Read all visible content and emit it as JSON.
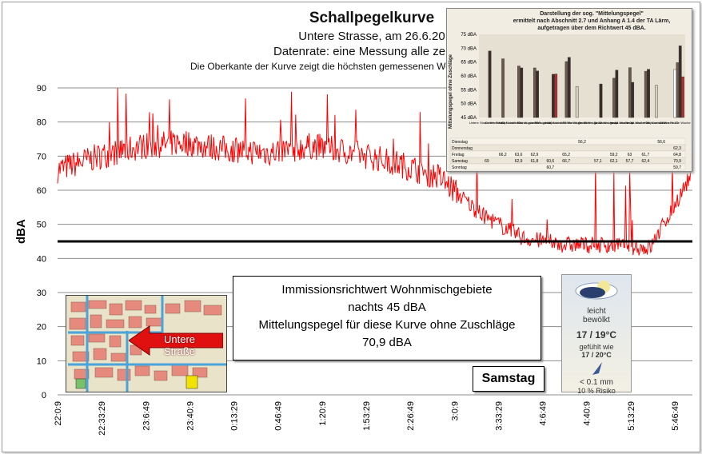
{
  "title": {
    "main": "Schallpegelkurve",
    "line2": "Untere Strasse, am 26.6.20",
    "line3": "Datenrate: eine Messung alle zehn S",
    "line4": "Die Oberkante der Kurve zeigt die höchsten  gemessenen Werte  in der Z"
  },
  "colors": {
    "curve": "#ff0000",
    "threshold": "#000000",
    "grid": "#8c8c8c",
    "arrow": "#e01010"
  },
  "textbox": {
    "line1": "Immissionsrichtwert Wohnmischgebiete",
    "line2": "nachts 45 dBA",
    "line3": "Mittelungspegel für diese Kurve ohne Zuschläge",
    "line4": "70,9 dBA"
  },
  "day_label": "Samstag",
  "map_label": "Untere Straße",
  "weather": {
    "icon": "moon-cloud-icon",
    "condition_1": "leicht",
    "condition_2": "bewölkt",
    "temp": "17 / 19°C",
    "felt_1": "gefühlt wie",
    "felt_2": "17 / 20°C",
    "rain_icon": "raindrop-icon",
    "precip": "< 0.1 mm",
    "risk": "10 % Risiko"
  },
  "chart_data": {
    "type": "line",
    "title": "Schallpegelkurve",
    "xlabel": "",
    "ylabel": "dBA",
    "ylim": [
      0,
      90
    ],
    "yticks": [
      0,
      10,
      20,
      30,
      40,
      50,
      60,
      70,
      80,
      90
    ],
    "x_tick_labels": [
      "22:0:9",
      "22:33:29",
      "23:6:49",
      "23:40:9",
      "0:13:29",
      "0:46:49",
      "1:20:9",
      "1:53:29",
      "2:26:49",
      "3:0:9",
      "3:33:29",
      "4:6:49",
      "4:40:9",
      "5:13:29",
      "5:46:49"
    ],
    "grid": true,
    "threshold": {
      "value": 45
    },
    "series": [
      {
        "x": [
          "22:0:9",
          "22:33:29",
          "23:6:49",
          "23:40:9",
          "0:13:29",
          "0:46:49",
          "1:20:9",
          "1:53:29",
          "2:26:49",
          "3:0:9",
          "3:33:29",
          "4:6:49",
          "4:40:9",
          "5:13:29",
          "5:46:49",
          "6:00:00"
        ],
        "values": [
          66,
          70,
          73,
          74,
          72,
          71,
          73,
          71,
          68,
          64,
          53,
          46,
          44,
          44,
          43,
          65
        ]
      }
    ]
  },
  "inset": {
    "title_1": "Darstellung der sog. \"Mittelungspegel\"",
    "title_2": "ermittelt nach Abschnitt 2.7 und Anhang A 1.4 der TA Lärm,",
    "title_3": "aufgetragen über dem Richtwert 45 dBA.",
    "ylabel": "Mittelungspegel ohne Zuschläge",
    "yticks": [
      "75 dBA",
      "70 dBA",
      "65 dBA",
      "60 dBA",
      "55 dBA",
      "50 dBA",
      "45 dBA"
    ],
    "rows": [
      "Dienstag",
      "Donnerstag",
      "Freitag",
      "Samstag",
      "Sonntag"
    ],
    "chart_data": {
      "type": "bar",
      "ylim": [
        45,
        75
      ],
      "categories": [
        "Untere Straße Woche 47",
        "Untere Straße Woche 49",
        "Haupt-straße Ost Woche 50",
        "Katzen-gasse Woche 50",
        "Stein-gasse Woche 50",
        "Haupt-straße Mitte Woche 51",
        "Gr. Mantel-gasse Woche 52",
        "Gr. Mantel-gasse Woche 13",
        "Gr. Mantel-gasse Woche 14",
        "Haupt-straße Ost Woche 20",
        "Haupt-straße Ost Woche 21",
        "Haupt-straße Woche 22",
        "Untere Straße Woche 25"
      ],
      "series": [
        {
          "name": "Dienstag",
          "values": [
            null,
            null,
            null,
            null,
            null,
            null,
            56.2,
            null,
            null,
            null,
            null,
            56.6,
            null
          ]
        },
        {
          "name": "Donnerstag",
          "values": [
            null,
            null,
            null,
            null,
            null,
            null,
            null,
            null,
            null,
            null,
            null,
            null,
            62.3
          ]
        },
        {
          "name": "Freitag",
          "values": [
            null,
            66.2,
            63.6,
            62.9,
            null,
            65.2,
            null,
            null,
            59.2,
            63,
            61.7,
            null,
            64.8
          ]
        },
        {
          "name": "Samstag",
          "values": [
            69,
            null,
            62.9,
            61.8,
            60.6,
            66.7,
            null,
            57.1,
            62.1,
            57.7,
            62.4,
            null,
            70.9
          ]
        },
        {
          "name": "Sonntag",
          "values": [
            null,
            null,
            null,
            null,
            60.7,
            null,
            null,
            null,
            null,
            null,
            null,
            null,
            59.7
          ]
        }
      ]
    }
  }
}
